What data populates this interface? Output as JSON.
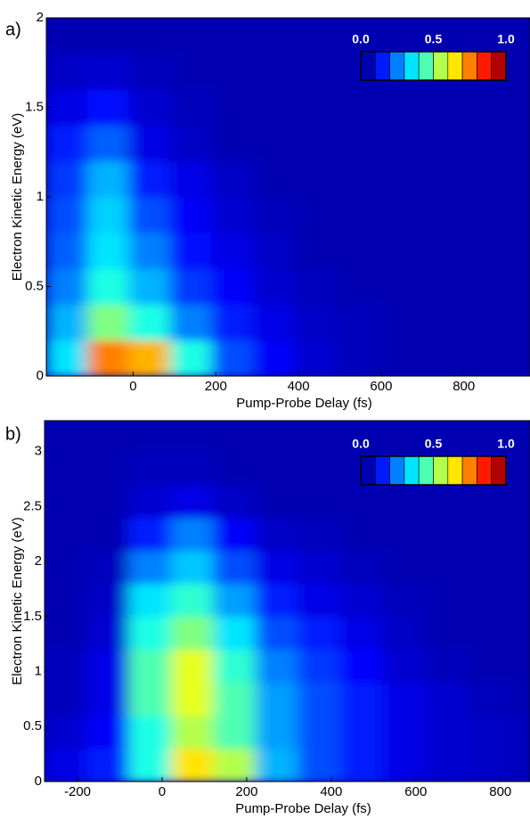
{
  "chart_data": [
    {
      "type": "heatmap",
      "panel_label": "a)",
      "xlabel": "Pump-Probe Delay (fs)",
      "ylabel": "Electron Kinetic Energy (eV)",
      "colormap": "jet",
      "x": [
        -160,
        -60,
        40,
        140,
        240,
        340,
        440,
        540,
        640,
        740,
        840,
        940
      ],
      "y": [
        0.1,
        0.3,
        0.5,
        0.7,
        0.9,
        1.1,
        1.3,
        1.5,
        1.7,
        1.9
      ],
      "z": [
        [
          0.35,
          0.75,
          0.7,
          0.4,
          0.2,
          0.12,
          0.08,
          0.06,
          0.05,
          0.05,
          0.05,
          0.05
        ],
        [
          0.3,
          0.5,
          0.4,
          0.25,
          0.15,
          0.1,
          0.07,
          0.06,
          0.05,
          0.05,
          0.05,
          0.05
        ],
        [
          0.25,
          0.4,
          0.3,
          0.18,
          0.12,
          0.08,
          0.06,
          0.05,
          0.05,
          0.05,
          0.05,
          0.05
        ],
        [
          0.22,
          0.35,
          0.25,
          0.14,
          0.1,
          0.07,
          0.05,
          0.05,
          0.05,
          0.05,
          0.05,
          0.05
        ],
        [
          0.2,
          0.33,
          0.2,
          0.12,
          0.08,
          0.06,
          0.05,
          0.05,
          0.05,
          0.05,
          0.05,
          0.05
        ],
        [
          0.18,
          0.3,
          0.15,
          0.1,
          0.07,
          0.05,
          0.05,
          0.05,
          0.05,
          0.05,
          0.05,
          0.05
        ],
        [
          0.15,
          0.22,
          0.1,
          0.07,
          0.05,
          0.05,
          0.05,
          0.05,
          0.05,
          0.05,
          0.05,
          0.05
        ],
        [
          0.1,
          0.14,
          0.08,
          0.06,
          0.05,
          0.05,
          0.05,
          0.05,
          0.05,
          0.05,
          0.05,
          0.05
        ],
        [
          0.07,
          0.08,
          0.06,
          0.05,
          0.05,
          0.05,
          0.05,
          0.05,
          0.05,
          0.05,
          0.05,
          0.05
        ],
        [
          0.05,
          0.05,
          0.05,
          0.05,
          0.05,
          0.05,
          0.05,
          0.05,
          0.05,
          0.05,
          0.05,
          0.05
        ]
      ],
      "xlim": [
        -210,
        960
      ],
      "ylim": [
        0,
        2
      ],
      "xticks": [
        0,
        200,
        400,
        600,
        800
      ],
      "yticks": [
        0,
        0.5,
        1,
        1.5,
        2
      ],
      "clim": [
        0,
        1
      ],
      "cticks": [
        {
          "value": 0,
          "label": "0.0"
        },
        {
          "value": 0.5,
          "label": "0.5"
        },
        {
          "value": 1,
          "label": "1.0"
        }
      ]
    },
    {
      "type": "heatmap",
      "panel_label": "b)",
      "xlabel": "Pump-Probe Delay (fs)",
      "ylabel": "Electron Kinetic Energy (eV)",
      "colormap": "jet",
      "x": [
        -228,
        -128,
        -28,
        72,
        172,
        272,
        372,
        472,
        572,
        672,
        772,
        872
      ],
      "y": [
        0.15,
        0.45,
        0.75,
        1.05,
        1.35,
        1.65,
        1.95,
        2.25,
        2.55,
        2.85,
        3.15
      ],
      "z": [
        [
          0.1,
          0.15,
          0.4,
          0.65,
          0.55,
          0.3,
          0.2,
          0.15,
          0.1,
          0.08,
          0.07,
          0.06
        ],
        [
          0.08,
          0.12,
          0.4,
          0.55,
          0.45,
          0.28,
          0.2,
          0.15,
          0.1,
          0.08,
          0.07,
          0.06
        ],
        [
          0.06,
          0.1,
          0.45,
          0.6,
          0.45,
          0.28,
          0.2,
          0.15,
          0.1,
          0.08,
          0.06,
          0.05
        ],
        [
          0.06,
          0.1,
          0.45,
          0.6,
          0.42,
          0.25,
          0.18,
          0.13,
          0.08,
          0.06,
          0.05,
          0.05
        ],
        [
          0.05,
          0.08,
          0.4,
          0.5,
          0.35,
          0.2,
          0.15,
          0.1,
          0.07,
          0.05,
          0.05,
          0.05
        ],
        [
          0.05,
          0.07,
          0.35,
          0.42,
          0.28,
          0.15,
          0.1,
          0.08,
          0.06,
          0.05,
          0.05,
          0.05
        ],
        [
          0.05,
          0.06,
          0.25,
          0.32,
          0.2,
          0.1,
          0.08,
          0.06,
          0.05,
          0.05,
          0.05,
          0.05
        ],
        [
          0.05,
          0.05,
          0.15,
          0.25,
          0.12,
          0.07,
          0.06,
          0.05,
          0.05,
          0.05,
          0.05,
          0.05
        ],
        [
          0.05,
          0.05,
          0.08,
          0.1,
          0.07,
          0.05,
          0.05,
          0.05,
          0.05,
          0.05,
          0.05,
          0.05
        ],
        [
          0.05,
          0.05,
          0.06,
          0.06,
          0.05,
          0.05,
          0.05,
          0.05,
          0.05,
          0.05,
          0.05,
          0.05
        ],
        [
          0.05,
          0.05,
          0.05,
          0.05,
          0.05,
          0.05,
          0.05,
          0.05,
          0.05,
          0.05,
          0.05,
          0.05
        ]
      ],
      "xlim": [
        -278,
        870
      ],
      "ylim": [
        0,
        3.28
      ],
      "xticks": [
        -200,
        0,
        200,
        400,
        600,
        800
      ],
      "yticks": [
        0,
        0.5,
        1,
        1.5,
        2,
        2.5,
        3
      ],
      "clim": [
        0,
        1
      ],
      "cticks": [
        {
          "value": 0,
          "label": "0.0"
        },
        {
          "value": 0.5,
          "label": "0.5"
        },
        {
          "value": 1,
          "label": "1.0"
        }
      ]
    }
  ]
}
